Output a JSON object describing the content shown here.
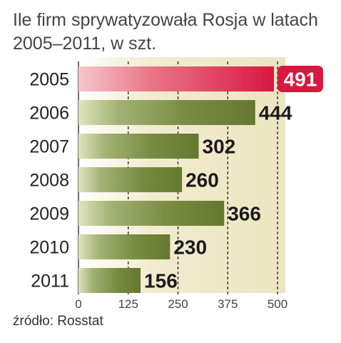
{
  "chart_data": {
    "type": "bar",
    "orientation": "horizontal",
    "title_line1": "Ile firm sprywatyzowała Rosja w latach",
    "title_line2": "2005–2011, w szt.",
    "categories": [
      "2005",
      "2006",
      "2007",
      "2008",
      "2009",
      "2010",
      "2011"
    ],
    "values": [
      491,
      444,
      302,
      260,
      366,
      230,
      156
    ],
    "value_labels": [
      "491",
      "444",
      "302",
      "260",
      "366",
      "230",
      "156"
    ],
    "xlim": [
      0,
      500
    ],
    "x_ticks": [
      0,
      125,
      250,
      375,
      500
    ],
    "x_tick_labels": [
      "0",
      "125",
      "250",
      "375",
      "500"
    ],
    "grid": "vertical dashed",
    "highlight_category": "2005",
    "colors": {
      "bar": "#76893f",
      "highlight_bar": "#d9173f",
      "highlight_label_bg": "#d9173f",
      "plot_background": "#f4f0d8"
    },
    "source": "źródło: Rosstat"
  }
}
